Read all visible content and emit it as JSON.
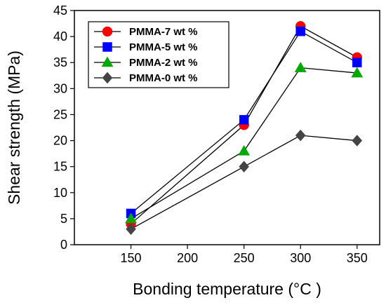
{
  "chart_data": {
    "type": "line",
    "xlabel": "Bonding temperature (°C  )",
    "ylabel": "Shear strength (MPa)",
    "xlim": [
      100,
      370
    ],
    "ylim": [
      0,
      45
    ],
    "xticks": [
      150,
      200,
      250,
      300,
      350
    ],
    "yticks": [
      0,
      5,
      10,
      15,
      20,
      25,
      30,
      35,
      40,
      45
    ],
    "grid": false,
    "legend_position": "top-left",
    "x": [
      150,
      250,
      300,
      350
    ],
    "series": [
      {
        "name": "PMMA-7 wt %",
        "values": [
          4,
          23,
          42,
          36
        ],
        "color": "#ff0000",
        "marker": "circle"
      },
      {
        "name": "PMMA-5 wt %",
        "values": [
          6,
          24,
          41,
          35
        ],
        "color": "#0000ff",
        "marker": "square"
      },
      {
        "name": "PMMA-2 wt %",
        "values": [
          5,
          18,
          34,
          33
        ],
        "color": "#00aa00",
        "marker": "triangle"
      },
      {
        "name": "PMMA-0 wt %",
        "values": [
          3,
          15,
          21,
          20
        ],
        "color": "#444444",
        "marker": "diamond"
      }
    ]
  }
}
